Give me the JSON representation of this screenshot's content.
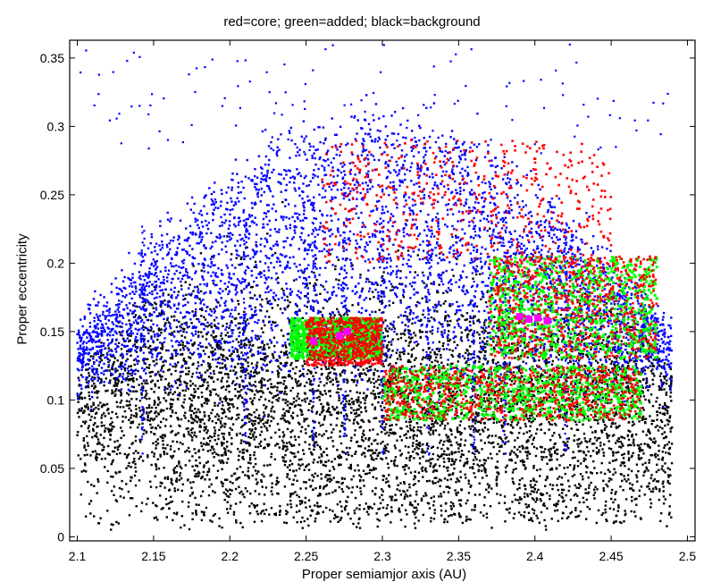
{
  "chart_data": {
    "type": "scatter",
    "title": "red=core; green=added; black=background",
    "xlabel": "Proper semiamjor axis (AU)",
    "ylabel": "Proper eccentricity",
    "xlim": [
      2.095,
      2.505
    ],
    "ylim": [
      -0.003,
      0.363
    ],
    "xticks": [
      "2.1",
      "2.15",
      "2.2",
      "2.25",
      "2.3",
      "2.35",
      "2.4",
      "2.45",
      "2.5"
    ],
    "yticks": [
      "0",
      "0.05",
      "0.1",
      "0.15",
      "0.2",
      "0.25",
      "0.3",
      "0.35"
    ],
    "grid": false,
    "series": [
      {
        "role": "background (black)",
        "color": "#000000",
        "density_regions": [
          {
            "x": [
              2.1,
              2.49
            ],
            "y": [
              0.0,
              0.25
            ],
            "density": "dense below ~0.15, sparse near edges"
          }
        ]
      },
      {
        "role": "outer (blue)",
        "color": "#0000ff",
        "density_regions": [
          {
            "x": [
              2.1,
              2.49
            ],
            "y": [
              0.12,
              0.36
            ],
            "density": "broad arc envelope"
          }
        ]
      },
      {
        "role": "core (red)",
        "color": "#ff0000",
        "regions": [
          {
            "x": [
              2.3,
              2.47
            ],
            "y": [
              0.085,
              0.125
            ]
          },
          {
            "x": [
              2.37,
              2.48
            ],
            "y": [
              0.13,
              0.205
            ]
          },
          {
            "x": [
              2.25,
              2.3
            ],
            "y": [
              0.125,
              0.16
            ]
          },
          {
            "x": [
              2.26,
              2.45
            ],
            "y": [
              0.2,
              0.29
            ]
          }
        ]
      },
      {
        "role": "added (green)",
        "color": "#00ff00",
        "regions": [
          {
            "x": [
              2.3,
              2.47
            ],
            "y": [
              0.085,
              0.125
            ]
          },
          {
            "x": [
              2.37,
              2.48
            ],
            "y": [
              0.13,
              0.205
            ]
          },
          {
            "x": [
              2.24,
              2.3
            ],
            "y": [
              0.13,
              0.16
            ]
          }
        ]
      },
      {
        "role": "highlight (magenta)",
        "color": "#ff00ff",
        "points": [
          {
            "x": 2.255,
            "y": 0.143
          },
          {
            "x": 2.272,
            "y": 0.147
          },
          {
            "x": 2.277,
            "y": 0.15
          },
          {
            "x": 2.39,
            "y": 0.161
          },
          {
            "x": 2.396,
            "y": 0.159
          },
          {
            "x": 2.402,
            "y": 0.16
          },
          {
            "x": 2.408,
            "y": 0.158
          }
        ]
      }
    ]
  }
}
